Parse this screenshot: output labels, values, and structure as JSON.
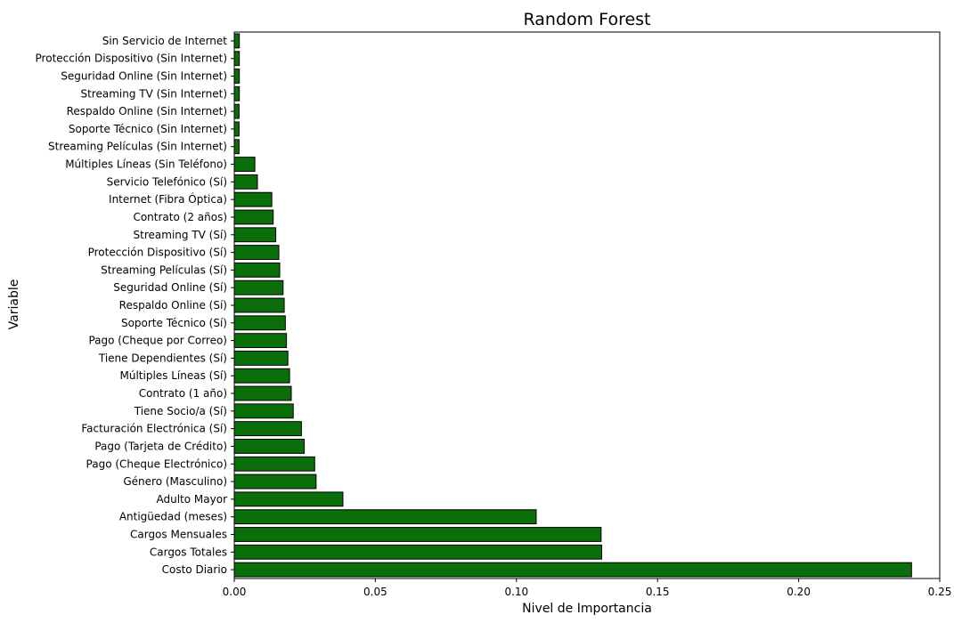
{
  "chart_data": {
    "type": "bar",
    "orientation": "horizontal",
    "title": "Random Forest",
    "xlabel": "Nivel de Importancia",
    "ylabel": "Variable",
    "xlim": [
      0,
      0.25
    ],
    "xticks": [
      0,
      0.05,
      0.1,
      0.15,
      0.2,
      0.25
    ],
    "xtick_labels": [
      "0.00",
      "0.05",
      "0.10",
      "0.15",
      "0.20",
      "0.25"
    ],
    "grid": false,
    "bar_color": "#0a6e0a",
    "bar_edge_color": "#000000",
    "categories": [
      "Sin Servicio de Internet",
      "Protección Dispositivo (Sin Internet)",
      "Seguridad Online (Sin Internet)",
      "Streaming TV (Sin Internet)",
      "Respaldo Online (Sin Internet)",
      "Soporte Técnico (Sin Internet)",
      "Streaming Películas (Sin Internet)",
      "Múltiples Líneas (Sin Teléfono)",
      "Servicio Telefónico (Sí)",
      "Internet (Fibra Óptica)",
      "Contrato (2 años)",
      "Streaming TV (Sí)",
      "Protección Dispositivo (Sí)",
      "Streaming Películas (Sí)",
      "Seguridad Online (Sí)",
      "Respaldo Online (Sí)",
      "Soporte Técnico (Sí)",
      "Pago (Cheque por Correo)",
      "Tiene Dependientes (Sí)",
      "Múltiples Líneas (Sí)",
      "Contrato (1 año)",
      "Tiene Socio/a (Sí)",
      "Facturación Electrónica (Sí)",
      "Pago (Tarjeta de Crédito)",
      "Pago (Cheque Electrónico)",
      "Género (Masculino)",
      "Adulto Mayor",
      "Antigüedad (meses)",
      "Cargos Mensuales",
      "Cargos Totales",
      "Costo Diario"
    ],
    "values": [
      0.0018,
      0.0018,
      0.0018,
      0.0018,
      0.0017,
      0.0017,
      0.0017,
      0.0073,
      0.0082,
      0.0133,
      0.0138,
      0.0147,
      0.0158,
      0.0161,
      0.0173,
      0.0177,
      0.0181,
      0.0185,
      0.019,
      0.0196,
      0.0202,
      0.0209,
      0.0238,
      0.0248,
      0.0285,
      0.029,
      0.0385,
      0.107,
      0.13,
      0.1302,
      0.24
    ]
  }
}
